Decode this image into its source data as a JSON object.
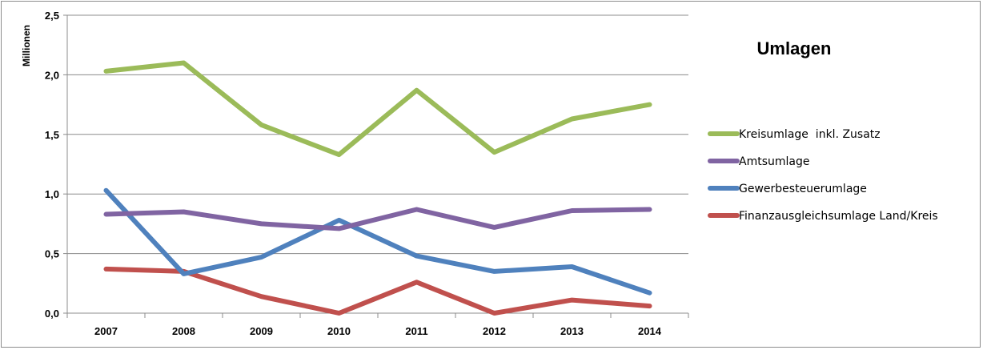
{
  "chart_data": {
    "type": "line",
    "title": "Umlagen",
    "ylabel": "Millionen",
    "xlabel": "",
    "categories": [
      "2007",
      "2008",
      "2009",
      "2010",
      "2011",
      "2012",
      "2013",
      "2014"
    ],
    "ylim": [
      0,
      2.5
    ],
    "yticks": [
      "0,0",
      "0,5",
      "1,0",
      "1,5",
      "2,0",
      "2,5"
    ],
    "grid": true,
    "legend_position": "right",
    "series": [
      {
        "name": "Kreisumlage  inkl. Zusatz",
        "color": "#9bbb59",
        "values": [
          2.03,
          2.1,
          1.58,
          1.33,
          1.87,
          1.35,
          1.63,
          1.75
        ]
      },
      {
        "name": "Amtsumlage",
        "color": "#8064a2",
        "values": [
          0.83,
          0.85,
          0.75,
          0.71,
          0.87,
          0.72,
          0.86,
          0.87
        ]
      },
      {
        "name": "Gewerbesteuerumlage",
        "color": "#4f81bd",
        "values": [
          1.03,
          0.33,
          0.47,
          0.78,
          0.48,
          0.35,
          0.39,
          0.17
        ]
      },
      {
        "name": "Finanzausgleichsumlage Land/Kreis",
        "color": "#c0504d",
        "values": [
          0.37,
          0.35,
          0.14,
          0.0,
          0.26,
          0.0,
          0.11,
          0.06
        ]
      }
    ]
  }
}
